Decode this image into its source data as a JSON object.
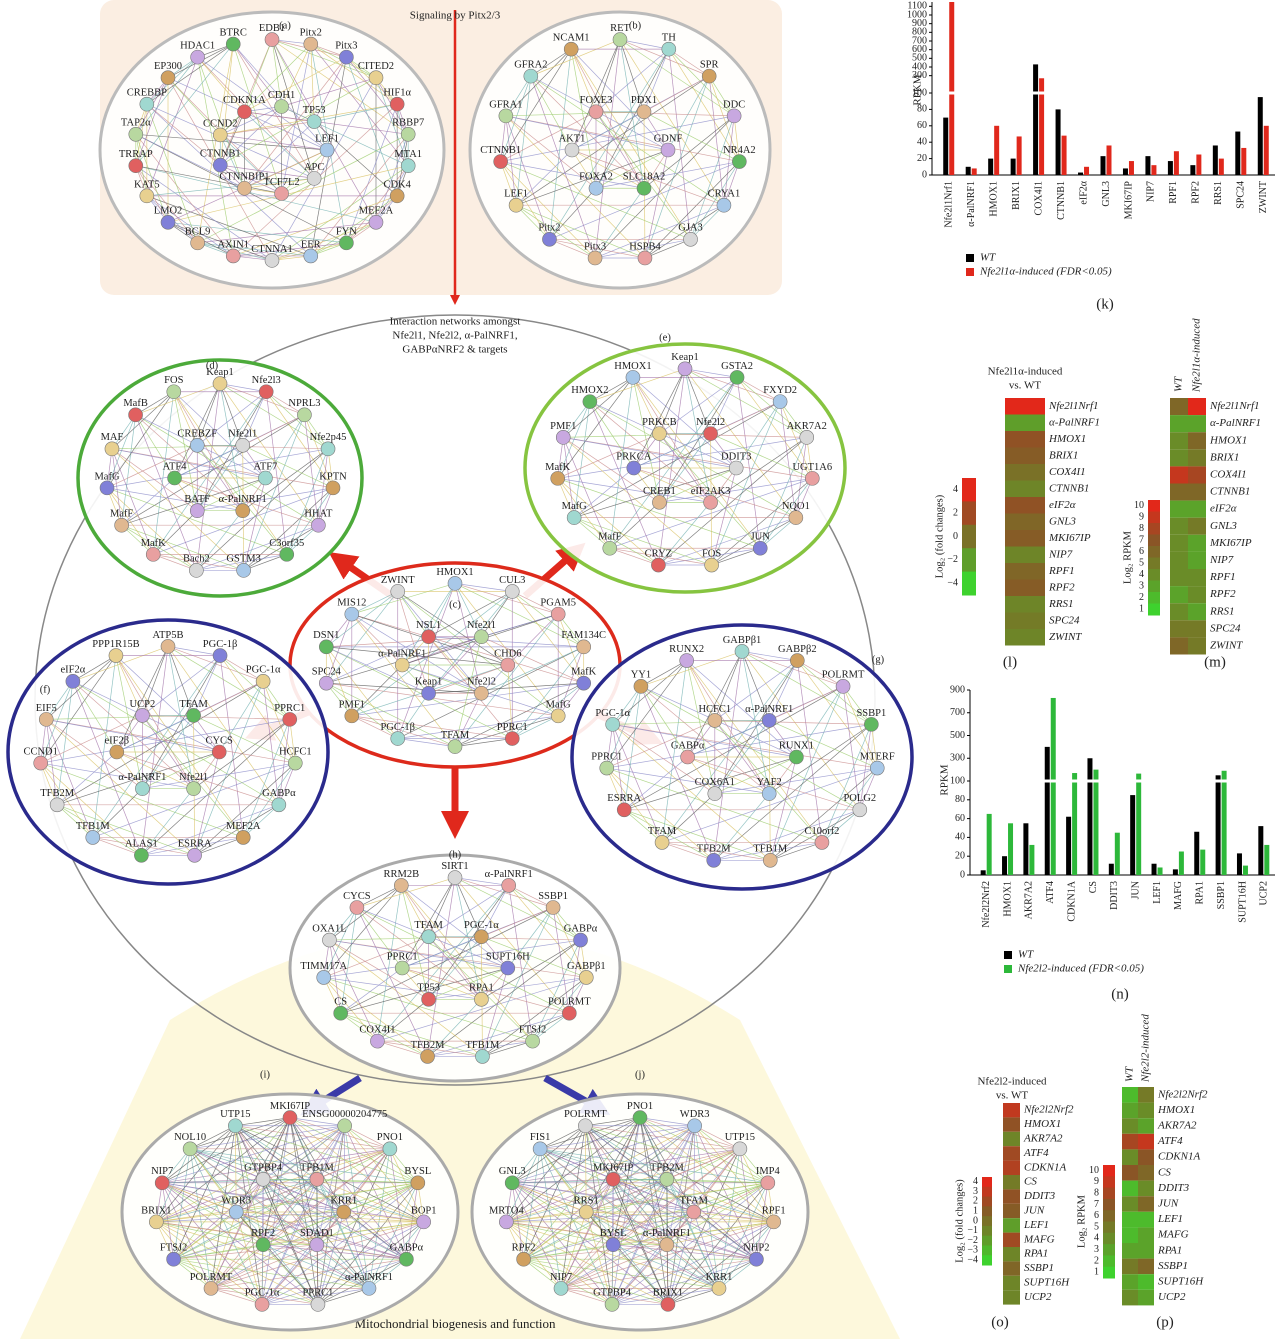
{
  "figure": {
    "top_title": "Signaling by Pitx2/3",
    "center_title": [
      "Interaction networks amongst",
      "Nfe2l1, Nfe2l2, α-PalNRF1,",
      "GABPαNRF2 & targets"
    ],
    "bottom_title": "Mitochondrial biogenesis and function",
    "networks": [
      {
        "label": "(a)",
        "nodes": [
          "EDB1",
          "Pitx2",
          "Pitx3",
          "CITED2",
          "HIF1α",
          "RBBP7",
          "MTA1",
          "CDK4",
          "MEF2A",
          "FYN",
          "EER",
          "CTNNA1",
          "AXIN1",
          "BCL9",
          "LMO2",
          "KAT5",
          "TRRAP",
          "TAP2α",
          "CREBBP",
          "EP300",
          "HDAC1",
          "BTRC",
          "LEF1",
          "APC",
          "TCF7L2",
          "CTNNBIP1",
          "CTNNB1",
          "CCND2",
          "CDKN1A",
          "CDH1",
          "TP53"
        ]
      },
      {
        "label": "(b)",
        "nodes": [
          "RET",
          "TH",
          "SPR",
          "DDC",
          "NR4A2",
          "CRYA1",
          "GJA3",
          "HSPB4",
          "Pitx3",
          "Pitx2",
          "LEF1",
          "CTNNB1",
          "GFRA1",
          "GFRA2",
          "NCAM1",
          "GDNF",
          "SLC18A2",
          "FOXA2",
          "AKT1",
          "FOXE3",
          "PDX1"
        ]
      },
      {
        "label": "(c)",
        "nodes": [
          "HMOX1",
          "CUL3",
          "PGAM5",
          "FAM134C",
          "MafK",
          "MafG",
          "PPRC1",
          "TFAM",
          "PGC-1β",
          "PMF1",
          "SPC24",
          "DSN1",
          "MIS12",
          "ZWINT",
          "CHD6",
          "Nfe2l2",
          "Keap1",
          "α-PalNRF1",
          "NSL1",
          "Nfe2l1"
        ]
      },
      {
        "label": "(d)",
        "nodes": [
          "Keap1",
          "Nfe2l3",
          "NPRL3",
          "Nfe2p45",
          "KPTN",
          "HHAT",
          "C3orf35",
          "GSTM3",
          "Bach2",
          "MafK",
          "MafF",
          "MafG",
          "MAF",
          "MafB",
          "FOS",
          "ATF7",
          "α-PalNRF1",
          "BATF",
          "ATF4",
          "CREBZF",
          "Nfe2l1"
        ]
      },
      {
        "label": "(e)",
        "nodes": [
          "Keap1",
          "GSTA2",
          "FXYD2",
          "AKR7A2",
          "UGT1A6",
          "NQO1",
          "JUN",
          "FOS",
          "CRYZ",
          "MafF",
          "MafG",
          "MafK",
          "PMF1",
          "HMOX2",
          "HMOX1",
          "DDIT3",
          "eIF2AK3",
          "CREB1",
          "PRKCA",
          "PRKCB",
          "Nfe2l2"
        ]
      },
      {
        "label": "(f)",
        "nodes": [
          "ATP5B",
          "PGC-1β",
          "PGC-1α",
          "PPRC1",
          "HCFC1",
          "GABPα",
          "MEF2A",
          "ESRRA",
          "ALAS1",
          "TFB1M",
          "TFB2M",
          "CCND1",
          "EIF5",
          "eIF2α",
          "PPP1R15B",
          "CYCS",
          "Nfe2l1",
          "α-PalNRF1",
          "eIF2β",
          "UCP2",
          "TFAM"
        ]
      },
      {
        "label": "(g)",
        "nodes": [
          "GABPβ1",
          "GABPβ2",
          "POLRMT",
          "SSBP1",
          "MTERF",
          "POLG2",
          "C10orf2",
          "TFB1M",
          "TFB2M",
          "TFAM",
          "ESRRA",
          "PPRC1",
          "PGC-1α",
          "YY1",
          "RUNX2",
          "RUNX1",
          "YAF2",
          "COX6A1",
          "GABPα",
          "HCFC1",
          "α-PalNRF1"
        ]
      },
      {
        "label": "(h)",
        "nodes": [
          "SIRT1",
          "α-PalNRF1",
          "SSBP1",
          "GABPα",
          "GABPβ1",
          "POLRMT",
          "FTSJ2",
          "TFB1M",
          "TFB2M",
          "COX4I1",
          "CS",
          "TIMM17A",
          "OXA1L",
          "CYCS",
          "RRM2B",
          "SUPT16H",
          "RPA1",
          "TP53",
          "PPRC1",
          "TFAM",
          "PGC-1α"
        ]
      },
      {
        "label": "(i)",
        "nodes": [
          "MKI67IP",
          "ENSG00000204775",
          "PNO1",
          "BYSL",
          "BOP1",
          "GABPα",
          "α-PalNRF1",
          "PPRC1",
          "PGC-1α",
          "POLRMT",
          "FTSJ2",
          "BRIX1",
          "NIP7",
          "NOL10",
          "UTP15",
          "KRR1",
          "SDAD1",
          "RPF2",
          "WDR3",
          "GTPBP4",
          "TFB1M"
        ]
      },
      {
        "label": "(j)",
        "nodes": [
          "PNO1",
          "WDR3",
          "UTP15",
          "IMP4",
          "RPF1",
          "NHP2",
          "KRR1",
          "BRIX1",
          "GTPBP4",
          "NIP7",
          "RPF2",
          "MRTO4",
          "GNL3",
          "FIS1",
          "POLRMT",
          "TFAM",
          "α-PalNRF1",
          "BYSL",
          "RRS1",
          "MKI67IP",
          "TFB2M"
        ]
      }
    ]
  },
  "chart_data": [
    {
      "type": "bar",
      "label": "(k)",
      "ylabel": "RPKM",
      "categories": [
        "Nfe2l1Nrf1",
        "α-PalNRF1",
        "HMOX1",
        "BRIX1",
        "COX4I1",
        "CTNNB1",
        "eIF2α",
        "GNL3",
        "MKI67IP",
        "NIP7",
        "RPF1",
        "RPF2",
        "RRS1",
        "SPC24",
        "ZWINT"
      ],
      "series": [
        {
          "name": "WT",
          "color": "#000000",
          "values": [
            70,
            10,
            20,
            20,
            430,
            80,
            3,
            23,
            8,
            23,
            17,
            12,
            36,
            53,
            95
          ]
        },
        {
          "name": "Nfe2l1α-induced (FDR<0.05)",
          "color": "#e0281c",
          "values": [
            1150,
            8,
            60,
            47,
            270,
            48,
            10,
            36,
            17,
            12,
            29,
            25,
            20,
            33,
            60
          ]
        }
      ],
      "ylim": [
        0,
        1150
      ],
      "ybreak": 100,
      "yticks": [
        0,
        20,
        40,
        60,
        80,
        100,
        300,
        400,
        500,
        600,
        700,
        800,
        900,
        1000,
        1100
      ]
    },
    {
      "type": "bar",
      "label": "(n)",
      "ylabel": "RPKM",
      "categories": [
        "Nfe2l2Nrf2",
        "HMOX1",
        "AKR7A2",
        "ATF4",
        "CDKN1A",
        "CS",
        "DDIT3",
        "JUN",
        "LEF1",
        "MAFG",
        "RPA1",
        "SSBP1",
        "SUPT16H",
        "UCP2"
      ],
      "series": [
        {
          "name": "WT",
          "color": "#000000",
          "values": [
            5,
            20,
            55,
            400,
            62,
            300,
            12,
            85,
            12,
            6,
            46,
            150,
            23,
            52
          ]
        },
        {
          "name": "Nfe2l2-induced (FDR<0.05)",
          "color": "#2db83a",
          "values": [
            65,
            55,
            32,
            830,
            170,
            200,
            45,
            165,
            8,
            25,
            27,
            190,
            10,
            32
          ]
        }
      ],
      "ylim": [
        0,
        900
      ],
      "ybreak": 100,
      "yticks": [
        0,
        20,
        40,
        60,
        80,
        100,
        300,
        500,
        700,
        900
      ]
    },
    {
      "type": "heatmap",
      "label": "(l)",
      "title": [
        "Nfe2l1α-induced",
        "vs. WT"
      ],
      "rows": [
        "Nfe2l1Nrf1",
        "α-PalNRF1",
        "HMOX1",
        "BRIX1",
        "COX4I1",
        "CTNNB1",
        "eIF2α",
        "GNL3",
        "MKI67IP",
        "NIP7",
        "RPF1",
        "RPF2",
        "RRS1",
        "SPC24",
        "ZWINT"
      ],
      "series": [
        {
          "values": [
            4,
            -2,
            1.5,
            1,
            0,
            -1,
            1.5,
            0.5,
            1,
            -1,
            0.5,
            1,
            -1,
            -0.5,
            -1
          ]
        }
      ],
      "clabel": "Log₂ (fold changes)",
      "clim": [
        -4,
        4
      ],
      "cticks": [
        4,
        2,
        0,
        {
          "value": -2,
          "label": "−2"
        },
        {
          "value": -4,
          "label": "−4"
        }
      ],
      "colors": [
        "#3ed22e",
        "#6a8c28",
        "#8a5526",
        "#e2281a"
      ]
    },
    {
      "type": "heatmap",
      "label": "(m)",
      "rows": [
        "Nfe2l1Nrf1",
        "α-PalNRF1",
        "HMOX1",
        "BRIX1",
        "COX4I1",
        "CTNNB1",
        "eIF2α",
        "GNL3",
        "MKI67IP",
        "NIP7",
        "RPF1",
        "RPF2",
        "RRS1",
        "SPC24",
        "ZWINT"
      ],
      "series": [
        {
          "name": "WT",
          "values": [
            6,
            3,
            4,
            4,
            9,
            6,
            3,
            4,
            4,
            4,
            4,
            3,
            4,
            5,
            6
          ]
        },
        {
          "name": "Nfe2l1α-induced",
          "values": [
            10,
            3,
            6,
            5,
            8,
            6,
            3,
            5,
            3,
            3,
            4,
            4,
            3,
            5,
            5
          ]
        }
      ],
      "clabel": "Log₂ RPKM",
      "clim": [
        1,
        10
      ],
      "cticks": [
        10,
        9,
        8,
        7,
        6,
        5,
        4,
        3,
        2,
        1
      ],
      "colors": [
        "#3ed22e",
        "#6a8c28",
        "#8a5526",
        "#e2281a"
      ]
    },
    {
      "type": "heatmap",
      "label": "(o)",
      "title": [
        "Nfe2l2-induced",
        "vs. WT"
      ],
      "rows": [
        "Nfe2l2Nrf2",
        "HMOX1",
        "AKR7A2",
        "ATF4",
        "CDKN1A",
        "CS",
        "DDIT3",
        "JUN",
        "LEF1",
        "MAFG",
        "RPA1",
        "SSBP1",
        "SUPT16H",
        "UCP2"
      ],
      "series": [
        {
          "values": [
            3,
            1.5,
            -1,
            2,
            2.5,
            -0.5,
            1.5,
            1,
            -2,
            2,
            -1,
            0.5,
            -1,
            -1
          ]
        }
      ],
      "clabel": "Log₂ (fold changes)",
      "clim": [
        -4,
        4
      ],
      "cticks": [
        4,
        3,
        2,
        1,
        0,
        {
          "value": -1,
          "label": "−1"
        },
        {
          "value": -2,
          "label": "−2"
        },
        {
          "value": -3,
          "label": "−3"
        },
        {
          "value": -4,
          "label": "−4"
        }
      ],
      "colors": [
        "#3ed22e",
        "#6a8c28",
        "#8a5526",
        "#e2281a"
      ]
    },
    {
      "type": "heatmap",
      "label": "(p)",
      "rows": [
        "Nfe2l2Nrf2",
        "HMOX1",
        "AKR7A2",
        "ATF4",
        "CDKN1A",
        "CS",
        "DDIT3",
        "JUN",
        "LEF1",
        "MAFG",
        "RPA1",
        "SSBP1",
        "SUPT16H",
        "UCP2"
      ],
      "series": [
        {
          "name": "WT",
          "values": [
            2,
            3,
            4,
            8,
            4,
            7,
            2,
            4,
            2,
            2,
            3,
            5,
            3,
            4
          ]
        },
        {
          "name": "Nfe2l2-induced",
          "values": [
            5,
            4,
            3,
            9,
            7,
            6,
            4,
            6,
            2,
            3,
            3,
            6,
            2,
            3
          ]
        }
      ],
      "clabel": "Log₂ RPKM",
      "clim": [
        1,
        10
      ],
      "cticks": [
        10,
        9,
        8,
        7,
        6,
        5,
        4,
        3,
        2,
        1
      ],
      "colors": [
        "#3ed22e",
        "#6a8c28",
        "#8a5526",
        "#e2281a"
      ]
    }
  ]
}
